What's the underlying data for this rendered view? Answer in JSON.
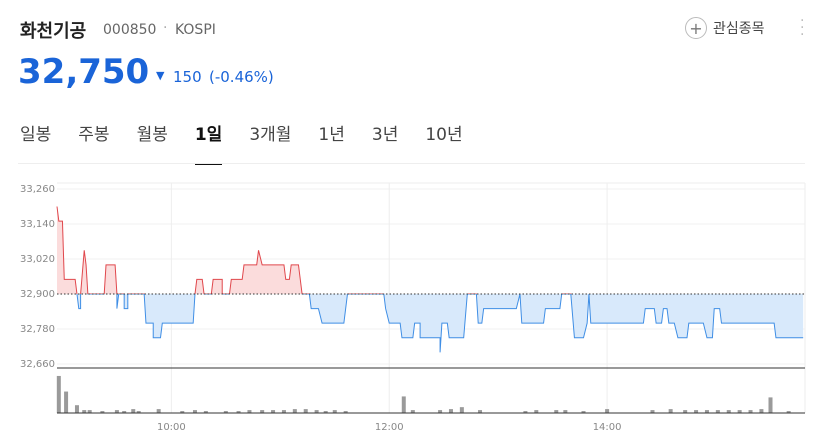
{
  "header": {
    "name": "화천기공",
    "code": "000850",
    "market": "KOSPI",
    "price": "32,750",
    "change": "150",
    "change_pct": "(-0.46%)",
    "watch": "관심종목"
  },
  "tabs": {
    "items": [
      "일봉",
      "주봉",
      "월봉",
      "1일",
      "3개월",
      "1년",
      "3년",
      "10년"
    ],
    "selected": 3
  },
  "chart_data": {
    "type": "line",
    "x": [
      537,
      538,
      540,
      541,
      547,
      548,
      549,
      550,
      550,
      552,
      553,
      554,
      563,
      564,
      569,
      570,
      570,
      571,
      574,
      574,
      576,
      576,
      585,
      586,
      590,
      590,
      594,
      595,
      612,
      613,
      614,
      617,
      618,
      622,
      623,
      628,
      628,
      632,
      633,
      639,
      640,
      647,
      648,
      650,
      662,
      663,
      665,
      666,
      670,
      672,
      676,
      677,
      681,
      683,
      695,
      696,
      697,
      717,
      718,
      720,
      726,
      727,
      733,
      734,
      737,
      737,
      748,
      748,
      749,
      752,
      753,
      761,
      763,
      768,
      769,
      771,
      772,
      790,
      792,
      793,
      805,
      806,
      814,
      815,
      820,
      822,
      827,
      829,
      830,
      831,
      860,
      861,
      866,
      867,
      870,
      871,
      873,
      874,
      877,
      879,
      884,
      885,
      893,
      895,
      898,
      899,
      902,
      903,
      932,
      933,
      948
    ],
    "values": [
      33200,
      33150,
      33150,
      32950,
      32950,
      32900,
      32850,
      32850,
      32900,
      33050,
      33000,
      32900,
      32900,
      33000,
      33000,
      32900,
      32850,
      32900,
      32900,
      32850,
      32850,
      32900,
      32900,
      32800,
      32800,
      32750,
      32750,
      32800,
      32800,
      32900,
      32950,
      32950,
      32900,
      32900,
      32950,
      32950,
      32900,
      32900,
      32950,
      32950,
      33000,
      33000,
      33050,
      33000,
      33000,
      32950,
      32950,
      33000,
      33000,
      32900,
      32900,
      32850,
      32850,
      32800,
      32800,
      32850,
      32900,
      32900,
      32850,
      32800,
      32800,
      32750,
      32750,
      32800,
      32800,
      32750,
      32750,
      32700,
      32800,
      32800,
      32750,
      32750,
      32900,
      32900,
      32800,
      32800,
      32850,
      32850,
      32900,
      32800,
      32800,
      32850,
      32850,
      32900,
      32900,
      32750,
      32750,
      32800,
      32900,
      32800,
      32800,
      32850,
      32850,
      32800,
      32800,
      32850,
      32850,
      32800,
      32800,
      32750,
      32750,
      32800,
      32800,
      32750,
      32750,
      32850,
      32850,
      32800,
      32800,
      32750,
      32750
    ],
    "reference": 32900,
    "up_color": "#e0474c",
    "up_fill": "#fbdcdc",
    "down_color": "#3f8ee5",
    "down_fill": "#d8e9fb",
    "xlim": [
      537,
      949
    ],
    "ylim": [
      32660,
      33260
    ],
    "yticks": [
      {
        "value": 32660,
        "label": "32,660"
      },
      {
        "value": 32780,
        "label": "32,780"
      },
      {
        "value": 32900,
        "label": "32,900"
      },
      {
        "value": 33020,
        "label": "33,020"
      },
      {
        "value": 33140,
        "label": "33,140"
      },
      {
        "value": 33260,
        "label": "33,260"
      }
    ],
    "xticks": [
      {
        "value": 600,
        "label": "10:00"
      },
      {
        "value": 720,
        "label": "12:00"
      },
      {
        "value": 840,
        "label": "14:00"
      }
    ],
    "grid": true,
    "volume": {
      "color": "#9a9a9a",
      "ylim": [
        0,
        40
      ],
      "x": [
        538,
        542,
        548,
        552,
        555,
        562,
        570,
        574,
        579,
        582,
        593,
        606,
        613,
        619,
        630,
        637,
        643,
        650,
        656,
        662,
        668,
        674,
        680,
        685,
        690,
        696,
        728,
        733,
        748,
        754,
        760,
        770,
        795,
        801,
        812,
        817,
        827,
        840,
        865,
        875,
        883,
        889,
        895,
        901,
        907,
        913,
        919,
        925,
        930,
        940
      ],
      "values": [
        38,
        22,
        8,
        3,
        3,
        2,
        3,
        2,
        4,
        2,
        4,
        2,
        3,
        2,
        2,
        2,
        3,
        3,
        3,
        3,
        4,
        4,
        3,
        2,
        3,
        2,
        17,
        3,
        3,
        4,
        6,
        3,
        2,
        3,
        3,
        3,
        2,
        4,
        3,
        4,
        3,
        3,
        3,
        3,
        3,
        3,
        3,
        4,
        16,
        2
      ]
    }
  }
}
